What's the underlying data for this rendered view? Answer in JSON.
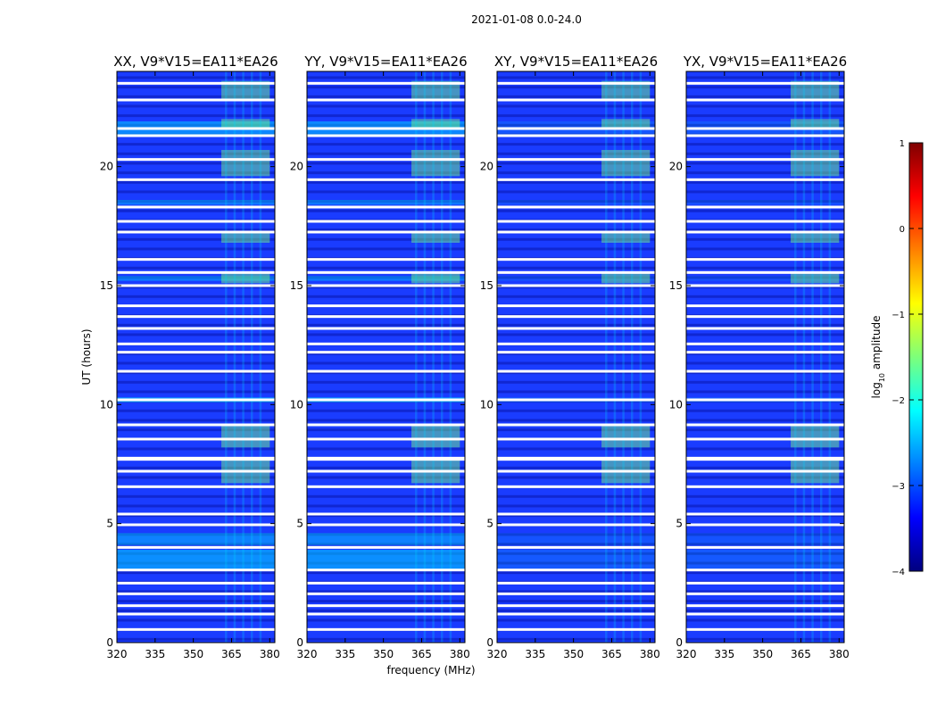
{
  "figure_title": "2021-01-08 0.0-24.0",
  "chart_data": {
    "type": "heatmap",
    "suptitle": "2021-01-08 0.0-24.0",
    "xlabel": "frequency (MHz)",
    "ylabel": "UT (hours)",
    "xlim": [
      320,
      382
    ],
    "ylim": [
      0,
      24
    ],
    "xticks": [
      320,
      335,
      350,
      365,
      380
    ],
    "yticks": [
      0,
      5,
      10,
      15,
      20
    ],
    "panels": [
      {
        "title": "XX, V9*V15=EA11*EA26",
        "pol": "XX"
      },
      {
        "title": "YY, V9*V15=EA11*EA26",
        "pol": "YY"
      },
      {
        "title": "XY, V9*V15=EA11*EA26",
        "pol": "XY"
      },
      {
        "title": "YX, V9*V15=EA11*EA26",
        "pol": "YX"
      }
    ],
    "rfi_band_mhz": [
      361,
      380
    ],
    "flagged_hours": [
      0.55,
      1.2,
      1.55,
      2.05,
      2.5,
      3.05,
      4.0,
      4.95,
      5.4,
      6.55,
      7.2,
      7.7,
      7.75,
      8.55,
      9.15,
      10.2,
      11.4,
      12.2,
      12.55,
      13.2,
      13.7,
      14.15,
      15.0,
      15.55,
      16.1,
      17.25,
      17.7,
      18.3,
      19.45,
      20.3,
      21.3,
      21.6,
      22.8,
      23.5
    ],
    "colorbar": {
      "label": "log10 amplitude",
      "label_main": "log",
      "label_sub": "10",
      "label_rest": " amplitude",
      "min": -4,
      "max": 1,
      "ticks": [
        1,
        0,
        -1,
        -2,
        -3,
        -4
      ],
      "tick_labels": [
        "1",
        "0",
        "−1",
        "−2",
        "−3",
        "−4"
      ],
      "colormap": "jet"
    }
  },
  "colors": {
    "deep": "#00007f",
    "background": "#1a3cff",
    "bright": "#00d4ff",
    "rfi": "#7dff7a",
    "flag": "#ffffff"
  }
}
